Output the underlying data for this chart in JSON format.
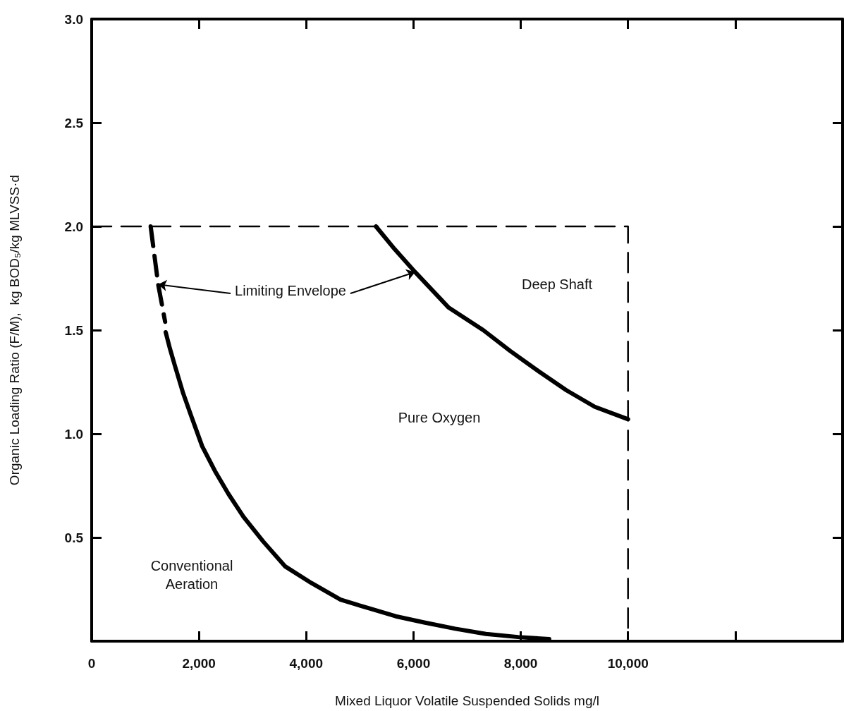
{
  "chart_data": {
    "type": "line",
    "xlabel": "Mixed Liquor Volatile Suspended Solids mg/l",
    "ylabel": "Organic Loading Ratio (F/M),  kg BOD₅/kg MLVSS·d",
    "xlim": [
      0,
      14000
    ],
    "xticks": [
      0,
      {
        "value": 2000,
        "label": "2,000"
      },
      {
        "value": 4000,
        "label": "4,000"
      },
      {
        "value": 6000,
        "label": "6,000"
      },
      {
        "value": 8000,
        "label": "8,000"
      },
      {
        "value": 10000,
        "label": "10,000"
      },
      {
        "value": 12000,
        "label": null
      }
    ],
    "ylim": [
      0,
      3
    ],
    "yticks": [
      {
        "value": 0,
        "label": null
      },
      0.5,
      {
        "value": 1,
        "label": "1.0"
      },
      1.5,
      {
        "value": 2,
        "label": "2.0"
      },
      2.5,
      {
        "value": 3,
        "label": "3.0"
      }
    ],
    "grid": false,
    "marker": "none",
    "series": [
      {
        "color": "#000000",
        "line_style": "dashed",
        "x": [
          1100,
          1240,
          1370
        ],
        "values": [
          2.0,
          1.72,
          1.54
        ]
      },
      {
        "color": "#000000",
        "line_style": "solid",
        "x": [
          1380,
          1460,
          1550,
          1700,
          1850,
          2060,
          2300,
          2550,
          2830,
          3200,
          3610,
          4100,
          4640,
          5150,
          5670,
          6200,
          6780,
          7350,
          7950,
          8530
        ],
        "values": [
          1.49,
          1.41,
          1.33,
          1.2,
          1.09,
          0.94,
          0.82,
          0.71,
          0.6,
          0.48,
          0.36,
          0.28,
          0.2,
          0.16,
          0.12,
          0.09,
          0.06,
          0.035,
          0.02,
          0.01
        ]
      },
      {
        "color": "#000000",
        "line_style": "solid",
        "x": [
          5300,
          5650,
          6030,
          6650,
          7300,
          7800,
          8340,
          8850,
          9380,
          10000
        ],
        "values": [
          2.0,
          1.89,
          1.78,
          1.61,
          1.5,
          1.4,
          1.3,
          1.21,
          1.13,
          1.07
        ]
      },
      {
        "color": "#000000",
        "line_style": "dashed",
        "x": [
          0,
          10000,
          10000
        ],
        "values": [
          2.0,
          2.0,
          0
        ]
      }
    ],
    "annotations": [
      {
        "text": "Limiting Envelope",
        "x": 1240,
        "y": 1.72
      },
      "Deep Shaft",
      "Pure Oxygen",
      "Conventional\nAeration"
    ]
  }
}
